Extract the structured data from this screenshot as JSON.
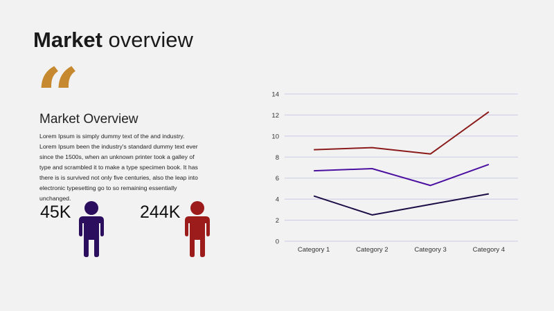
{
  "slide": {
    "title_bold": "Market",
    "title_rest": " overview",
    "quote_glyph": "“",
    "subtitle": "Market Overview",
    "body": "Lorem Ipsum is simply dummy text of the and industry. Lorem Ipsum been the industry's standard dummy text ever since the 1500s, when an unknown printer took a galley of type and scrambled it to make a type specimen book. It has there is is survived not only five centuries, also the leap into electronic typesetting go to so remaining essentially unchanged."
  },
  "stats": [
    {
      "value": "45K",
      "icon": "person-icon",
      "color": "#2b0f5e"
    },
    {
      "value": "244K",
      "icon": "person-icon",
      "color": "#9c1c1c"
    }
  ],
  "colors": {
    "accent_quote": "#c6892f"
  },
  "chart_data": {
    "type": "line",
    "categories": [
      "Category 1",
      "Category 2",
      "Category 3",
      "Category 4"
    ],
    "ylim": [
      0,
      14
    ],
    "yticks": [
      0,
      2,
      4,
      6,
      8,
      10,
      12,
      14
    ],
    "grid": true,
    "series": [
      {
        "values": [
          8.7,
          8.9,
          8.3,
          12.3
        ],
        "color": "#8b1a1a"
      },
      {
        "values": [
          6.7,
          6.9,
          5.3,
          7.3
        ],
        "color": "#4b0fa0"
      },
      {
        "values": [
          4.3,
          2.5,
          3.5,
          4.5
        ],
        "color": "#1c0c45"
      }
    ],
    "title": "",
    "xlabel": "",
    "ylabel": ""
  }
}
